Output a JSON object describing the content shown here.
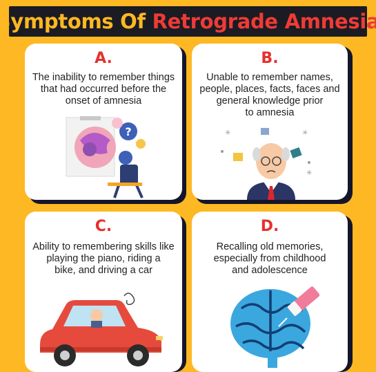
{
  "title": {
    "part1": "Symptoms Of ",
    "part2": "Retrograde Amnesia"
  },
  "colors": {
    "background": "#FDB823",
    "title_bar": "#1B1B23",
    "accent_red": "#EE3B36",
    "card": "#FFFFFF",
    "card_shadow": "#15152A"
  },
  "cards": [
    {
      "letter": "A.",
      "lines": [
        "The inability to remember things",
        "that had occurred before the",
        "onset of amnesia"
      ]
    },
    {
      "letter": "B.",
      "lines": [
        "Unable to remember names,",
        "people, places, facts, faces and",
        "general knowledge prior",
        "to amnesia"
      ]
    },
    {
      "letter": "C.",
      "lines": [
        "Ability to remembering skills like",
        "playing the piano, riding a",
        "bike, and driving a car"
      ]
    },
    {
      "letter": "D.",
      "lines": [
        "Recalling old memories,",
        "especially from childhood",
        "and adolescence"
      ]
    }
  ],
  "illustrations": {
    "a": "confused-head-question-marks-icon",
    "b": "confused-old-man-puzzle-icon",
    "c": "man-driving-red-car-icon",
    "d": "brain-with-eraser-icon"
  }
}
